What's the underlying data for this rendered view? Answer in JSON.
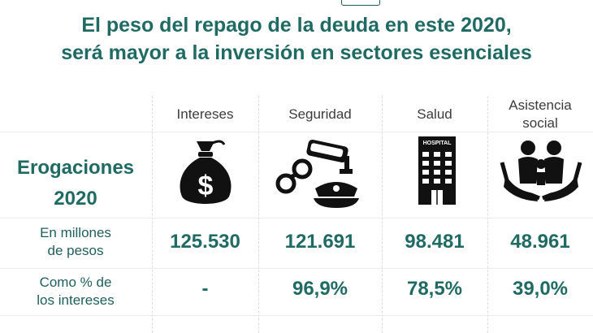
{
  "title_line1": "El peso del repago de la deuda en este 2020,",
  "title_line2": "será mayor a la inversión en sectores esenciales",
  "row_header_label": "Erogaciones",
  "row_header_year": "2020",
  "row1_label_line1": "En millones",
  "row1_label_line2": "de pesos",
  "row2_label_line1": "Como % de",
  "row2_label_line2": "los intereses",
  "hospital_sign": "HOSPITAL",
  "accent_color": "#1f6b63",
  "chart_data": {
    "type": "table",
    "title": "El peso del repago de la deuda en este 2020, será mayor a la inversión en sectores esenciales",
    "columns": [
      {
        "label": "Intereses",
        "icon": "money-bag-icon",
        "millones": "125.530",
        "pct": "-"
      },
      {
        "label": "Seguridad",
        "icon": "security-icon",
        "millones": "121.691",
        "pct": "96,9%"
      },
      {
        "label": "Salud",
        "icon": "hospital-icon",
        "millones": "98.481",
        "pct": "78,5%"
      },
      {
        "label_line1": "Asistencia",
        "label_line2": "social",
        "icon": "family-care-icon",
        "millones": "48.961",
        "pct": "39,0%"
      }
    ]
  }
}
